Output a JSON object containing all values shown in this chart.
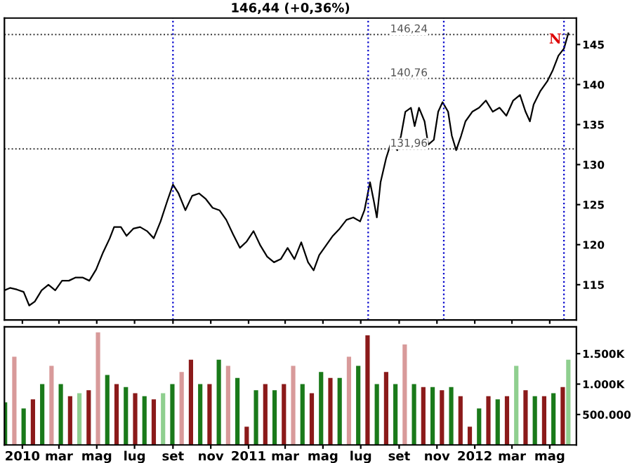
{
  "chart_data": [
    {
      "type": "line",
      "title": "146,44 (+0,36%)",
      "tick_labels": "y",
      "grid": false,
      "legend": false,
      "marker": "none",
      "line_style": "solid",
      "xlim": [
        "2009-12-03",
        "2012-06-13"
      ],
      "ylim": [
        110.6,
        148.3
      ],
      "yticks": [
        115,
        120,
        125,
        130,
        135,
        140,
        145
      ],
      "series": [
        {
          "color": "#000000",
          "x": [
            "2009-12-03",
            "2009-12-12",
            "2009-12-23",
            "2010-01-03",
            "2010-01-12",
            "2010-01-21",
            "2010-02-01",
            "2010-02-12",
            "2010-02-23",
            "2010-03-06",
            "2010-03-17",
            "2010-03-28",
            "2010-04-08",
            "2010-04-19",
            "2010-04-30",
            "2010-05-11",
            "2010-05-22",
            "2010-05-29",
            "2010-06-09",
            "2010-06-18",
            "2010-06-29",
            "2010-07-10",
            "2010-07-21",
            "2010-08-01",
            "2010-08-12",
            "2010-08-23",
            "2010-09-01",
            "2010-09-10",
            "2010-09-21",
            "2010-10-02",
            "2010-10-13",
            "2010-10-24",
            "2010-11-04",
            "2010-11-15",
            "2010-11-26",
            "2010-12-07",
            "2010-12-18",
            "2010-12-29",
            "2011-01-09",
            "2011-01-20",
            "2011-01-31",
            "2011-02-11",
            "2011-02-22",
            "2011-03-05",
            "2011-03-16",
            "2011-03-27",
            "2011-04-07",
            "2011-04-16",
            "2011-04-25",
            "2011-05-06",
            "2011-05-17",
            "2011-05-28",
            "2011-06-08",
            "2011-06-19",
            "2011-06-30",
            "2011-07-07",
            "2011-07-16",
            "2011-07-22",
            "2011-07-27",
            "2011-08-02",
            "2011-08-11",
            "2011-08-20",
            "2011-08-29",
            "2011-09-04",
            "2011-09-11",
            "2011-09-20",
            "2011-09-26",
            "2011-10-03",
            "2011-10-12",
            "2011-10-18",
            "2011-10-27",
            "2011-11-03",
            "2011-11-10",
            "2011-11-19",
            "2011-11-25",
            "2011-12-02",
            "2011-12-10",
            "2011-12-17",
            "2011-12-28",
            "2012-01-08",
            "2012-01-19",
            "2012-01-30",
            "2012-02-10",
            "2012-02-21",
            "2012-03-03",
            "2012-03-14",
            "2012-03-23",
            "2012-03-30",
            "2012-04-05",
            "2012-04-16",
            "2012-04-27",
            "2012-05-06",
            "2012-05-15",
            "2012-05-24",
            "2012-05-31"
          ],
          "values": [
            114.3,
            114.6,
            114.4,
            114.1,
            112.4,
            112.9,
            114.3,
            115,
            114.3,
            115.5,
            115.5,
            115.9,
            115.9,
            115.5,
            116.9,
            119,
            120.8,
            122.2,
            122.2,
            121.1,
            122,
            122.2,
            121.7,
            120.8,
            122.9,
            125.5,
            127.5,
            126.4,
            124.3,
            126.1,
            126.4,
            125.7,
            124.6,
            124.3,
            123.1,
            121.3,
            119.6,
            120.4,
            121.7,
            119.9,
            118.5,
            117.8,
            118.2,
            119.6,
            118.2,
            120.3,
            117.8,
            116.8,
            118.7,
            119.9,
            121.1,
            122,
            123.1,
            123.4,
            122.9,
            124.3,
            127.8,
            125.5,
            123.4,
            127.8,
            130.8,
            133,
            131.8,
            133.6,
            136.6,
            137.1,
            134.8,
            137.1,
            135.4,
            132.5,
            133.1,
            136.6,
            137.8,
            136.6,
            133.6,
            131.8,
            133.6,
            135.4,
            136.6,
            137.1,
            138,
            136.6,
            137.1,
            136.1,
            138,
            138.7,
            136.6,
            135.4,
            137.5,
            139.2,
            140.4,
            141.8,
            143.6,
            144.5,
            146.4
          ]
        }
      ],
      "ref_lines": [
        {
          "axis": "x",
          "value": "2010-09-01",
          "color": "#0000cc",
          "line_style": "dotted"
        },
        {
          "axis": "x",
          "value": "2011-07-13",
          "color": "#0000cc",
          "line_style": "dotted"
        },
        {
          "axis": "x",
          "value": "2011-11-12",
          "color": "#0000cc",
          "line_style": "dotted"
        },
        {
          "axis": "x",
          "value": "2012-05-24",
          "color": "#0000cc",
          "line_style": "dotted"
        },
        {
          "axis": "y",
          "value": 146.24,
          "label": "146,24",
          "color": "#333333",
          "line_style": "dotted"
        },
        {
          "axis": "y",
          "value": 140.76,
          "label": "140,76",
          "color": "#333333",
          "line_style": "dotted"
        },
        {
          "axis": "y",
          "value": 131.96,
          "label": "131,96",
          "color": "#333333",
          "line_style": "dotted"
        }
      ],
      "annotations": [
        {
          "text": "N",
          "x": "2012-05-20",
          "y": 145.6
        }
      ]
    },
    {
      "type": "bar",
      "grid": false,
      "legend": false,
      "xlim": [
        "2009-12-03",
        "2012-06-13"
      ],
      "ylim": [
        0,
        1940000
      ],
      "xticks": [
        {
          "value": "2010-01-01",
          "label": "2010"
        },
        {
          "value": "2010-03-01",
          "label": "mar"
        },
        {
          "value": "2010-05-01",
          "label": "mag"
        },
        {
          "value": "2010-07-01",
          "label": "lug"
        },
        {
          "value": "2010-09-01",
          "label": "set"
        },
        {
          "value": "2010-11-01",
          "label": "nov"
        },
        {
          "value": "2011-01-01",
          "label": "2011"
        },
        {
          "value": "2011-03-01",
          "label": "mar"
        },
        {
          "value": "2011-05-01",
          "label": "mag"
        },
        {
          "value": "2011-07-01",
          "label": "lug"
        },
        {
          "value": "2011-09-01",
          "label": "set"
        },
        {
          "value": "2011-11-01",
          "label": "nov"
        },
        {
          "value": "2012-01-01",
          "label": "2012"
        },
        {
          "value": "2012-03-01",
          "label": "mar"
        },
        {
          "value": "2012-05-01",
          "label": "mag"
        }
      ],
      "yticks": [
        {
          "value": 500000,
          "label": "500.000"
        },
        {
          "value": 1000000,
          "label": "1.000K"
        },
        {
          "value": 1500000,
          "label": "1.500K"
        }
      ],
      "x": [
        "2009-12-04",
        "2009-12-19",
        "2010-01-03",
        "2010-01-18",
        "2010-02-02",
        "2010-02-17",
        "2010-03-04",
        "2010-03-19",
        "2010-04-03",
        "2010-04-18",
        "2010-05-03",
        "2010-05-18",
        "2010-06-02",
        "2010-06-17",
        "2010-07-02",
        "2010-07-17",
        "2010-08-01",
        "2010-08-16",
        "2010-08-31",
        "2010-09-15",
        "2010-09-30",
        "2010-10-15",
        "2010-10-30",
        "2010-11-14",
        "2010-11-29",
        "2010-12-14",
        "2010-12-29",
        "2011-01-13",
        "2011-01-28",
        "2011-02-12",
        "2011-02-27",
        "2011-03-14",
        "2011-03-29",
        "2011-04-13",
        "2011-04-28",
        "2011-05-13",
        "2011-05-28",
        "2011-06-12",
        "2011-06-27",
        "2011-07-12",
        "2011-07-27",
        "2011-08-11",
        "2011-08-26",
        "2011-09-10",
        "2011-09-25",
        "2011-10-10",
        "2011-10-25",
        "2011-11-09",
        "2011-11-24",
        "2011-12-09",
        "2011-12-24",
        "2012-01-08",
        "2012-01-23",
        "2012-02-07",
        "2012-02-22",
        "2012-03-08",
        "2012-03-23",
        "2012-04-07",
        "2012-04-22",
        "2012-05-07",
        "2012-05-22",
        "2012-05-31"
      ],
      "values": [
        700000,
        1450000,
        600000,
        750000,
        1000000,
        1300000,
        1000000,
        800000,
        850000,
        900000,
        1850000,
        1150000,
        1000000,
        950000,
        850000,
        800000,
        750000,
        850000,
        1000000,
        1200000,
        1400000,
        1000000,
        1000000,
        1400000,
        1300000,
        1100000,
        300000,
        900000,
        1000000,
        900000,
        1000000,
        1300000,
        1000000,
        850000,
        1200000,
        1100000,
        1100000,
        1450000,
        1300000,
        1800000,
        1000000,
        1200000,
        1000000,
        1650000,
        1000000,
        950000,
        950000,
        900000,
        950000,
        800000,
        300000,
        600000,
        800000,
        750000,
        800000,
        1300000,
        900000,
        800000,
        800000,
        850000,
        950000,
        1400000
      ],
      "colors": [
        "#1a7a1a",
        "#d89a9a",
        "#1a7a1a",
        "#8b1a1a",
        "#1a7a1a",
        "#d89a9a",
        "#1a7a1a",
        "#8b1a1a",
        "#8fcf8f",
        "#8b1a1a",
        "#d89a9a",
        "#1a7a1a",
        "#8b1a1a",
        "#1a7a1a",
        "#8b1a1a",
        "#1a7a1a",
        "#8b1a1a",
        "#8fcf8f",
        "#1a7a1a",
        "#d89a9a",
        "#8b1a1a",
        "#1a7a1a",
        "#8b1a1a",
        "#1a7a1a",
        "#d89a9a",
        "#1a7a1a",
        "#8b1a1a",
        "#1a7a1a",
        "#8b1a1a",
        "#1a7a1a",
        "#8b1a1a",
        "#d89a9a",
        "#1a7a1a",
        "#8b1a1a",
        "#1a7a1a",
        "#8b1a1a",
        "#1a7a1a",
        "#d89a9a",
        "#1a7a1a",
        "#8b1a1a",
        "#1a7a1a",
        "#8b1a1a",
        "#1a7a1a",
        "#d89a9a",
        "#1a7a1a",
        "#8b1a1a",
        "#1a7a1a",
        "#8b1a1a",
        "#1a7a1a",
        "#8b1a1a",
        "#8b1a1a",
        "#1a7a1a",
        "#8b1a1a",
        "#1a7a1a",
        "#8b1a1a",
        "#8fcf8f",
        "#8b1a1a",
        "#1a7a1a",
        "#8b1a1a",
        "#1a7a1a",
        "#8b1a1a",
        "#8fcf8f"
      ]
    }
  ]
}
